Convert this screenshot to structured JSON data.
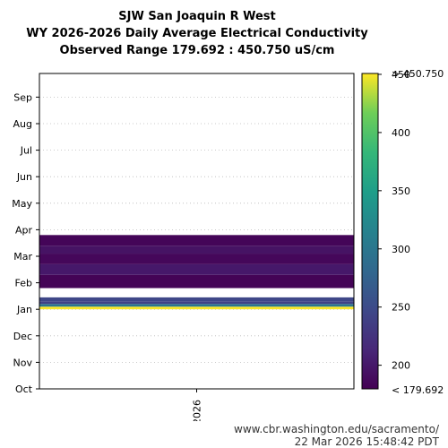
{
  "title": {
    "line1": "SJW San Joaquin R West",
    "line2": "WY 2026-2026 Daily Average Electrical Conductivity",
    "line3": "Observed Range 179.692 : 450.750 uS/cm"
  },
  "footer": {
    "source": "www.cbr.washington.edu/sacramento/",
    "timestamp": "22 Mar 2026 15:48:42 PDT"
  },
  "chart_data": {
    "type": "heatmap",
    "x_categories": [
      "2026"
    ],
    "y_ticks": [
      "Oct",
      "Nov",
      "Dec",
      "Jan",
      "Feb",
      "Mar",
      "Apr",
      "May",
      "Jun",
      "Jul",
      "Aug",
      "Sep"
    ],
    "colorbar": {
      "colormap": "viridis",
      "min": 179.692,
      "max": 450.75,
      "ticks": [
        "200",
        "250",
        "300",
        "350",
        "400",
        "450"
      ],
      "min_label": "< 179.692",
      "max_label": "> 450.750"
    },
    "bands": [
      {
        "start_month": 3.0,
        "end_month": 3.1,
        "value": 450
      },
      {
        "start_month": 3.1,
        "end_month": 3.2,
        "value": 300
      },
      {
        "start_month": 3.2,
        "end_month": 3.3,
        "value": 240
      },
      {
        "start_month": 3.3,
        "end_month": 3.45,
        "value": 245
      },
      {
        "start_month": 3.8,
        "end_month": 4.3,
        "value": 182
      },
      {
        "start_month": 4.3,
        "end_month": 4.7,
        "value": 200
      },
      {
        "start_month": 4.7,
        "end_month": 5.1,
        "value": 185
      },
      {
        "start_month": 5.1,
        "end_month": 5.4,
        "value": 195
      },
      {
        "start_month": 5.4,
        "end_month": 5.8,
        "value": 183
      }
    ]
  }
}
